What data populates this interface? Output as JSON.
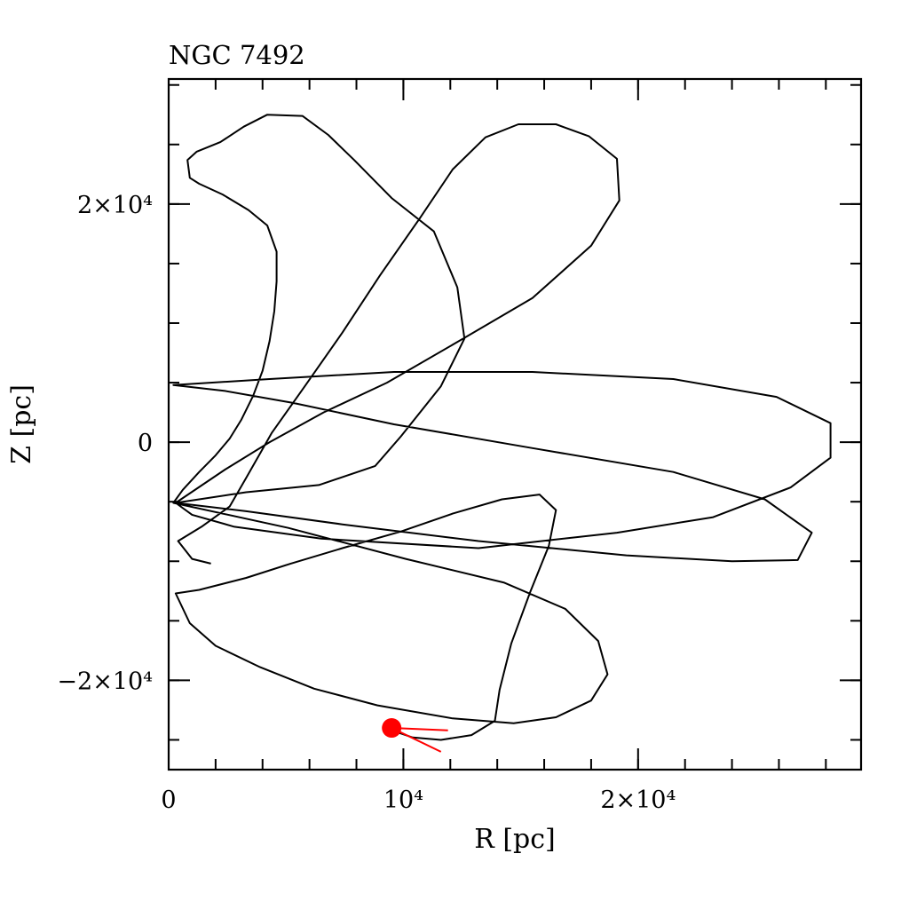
{
  "chart_data": {
    "type": "line",
    "title": "NGC 7492",
    "xlabel": "R [pc]",
    "ylabel": "Z [pc]",
    "xlim": [
      0,
      29500
    ],
    "ylim": [
      -27500,
      30500
    ],
    "grid": false,
    "x_ticks": [
      {
        "value": 0,
        "label": "0"
      },
      {
        "value": 10000,
        "label": "10⁴"
      },
      {
        "value": 20000,
        "label": "2×10⁴"
      }
    ],
    "y_ticks": [
      {
        "value": -20000,
        "label": "−2×10⁴"
      },
      {
        "value": 0,
        "label": "0"
      },
      {
        "value": 20000,
        "label": "2×10⁴"
      }
    ],
    "x_minor_step": 2000,
    "y_minor_step": 5000,
    "series": [
      {
        "color": "#000000",
        "points": [
          [
            1800,
            -10200
          ],
          [
            1000,
            -9800
          ],
          [
            400,
            -8300
          ],
          [
            1400,
            -7100
          ],
          [
            2600,
            -5400
          ],
          [
            3300,
            -3000
          ],
          [
            4400,
            800
          ],
          [
            5800,
            4700
          ],
          [
            7400,
            9200
          ],
          [
            9000,
            14000
          ],
          [
            10700,
            18800
          ],
          [
            12100,
            22900
          ],
          [
            13500,
            25600
          ],
          [
            14900,
            26700
          ],
          [
            16500,
            26700
          ],
          [
            17900,
            25700
          ],
          [
            19100,
            23800
          ],
          [
            19200,
            20300
          ],
          [
            18000,
            16500
          ],
          [
            15500,
            12100
          ],
          [
            12200,
            8300
          ],
          [
            9300,
            5000
          ],
          [
            6600,
            2500
          ],
          [
            4300,
            0
          ],
          [
            2400,
            -2300
          ],
          [
            300,
            -5100
          ],
          [
            3300,
            -5800
          ],
          [
            7400,
            -6900
          ],
          [
            13200,
            -8300
          ],
          [
            19500,
            -9500
          ],
          [
            24000,
            -10000
          ],
          [
            26800,
            -9900
          ],
          [
            27400,
            -7600
          ],
          [
            25400,
            -4800
          ],
          [
            21500,
            -2500
          ],
          [
            15500,
            -500
          ],
          [
            9600,
            1500
          ],
          [
            5300,
            3300
          ],
          [
            2400,
            4300
          ],
          [
            200,
            4800
          ],
          [
            4300,
            5300
          ],
          [
            9600,
            5900
          ],
          [
            15500,
            5900
          ],
          [
            21500,
            5300
          ],
          [
            25900,
            3800
          ],
          [
            28200,
            1600
          ],
          [
            28200,
            -1300
          ],
          [
            26500,
            -3800
          ],
          [
            23200,
            -6300
          ],
          [
            19100,
            -7600
          ],
          [
            13200,
            -8900
          ],
          [
            6500,
            -8100
          ],
          [
            2800,
            -7100
          ],
          [
            1000,
            -6100
          ],
          [
            300,
            -5100
          ],
          [
            3300,
            -4200
          ],
          [
            6400,
            -3600
          ],
          [
            8800,
            -2000
          ],
          [
            9900,
            500
          ],
          [
            11600,
            4700
          ],
          [
            12600,
            8700
          ],
          [
            12300,
            13000
          ],
          [
            11300,
            17700
          ],
          [
            9500,
            20500
          ],
          [
            7900,
            23700
          ],
          [
            6800,
            25800
          ],
          [
            5700,
            27400
          ],
          [
            4200,
            27500
          ],
          [
            3200,
            26500
          ],
          [
            2200,
            25200
          ],
          [
            1200,
            24400
          ],
          [
            800,
            23700
          ],
          [
            900,
            22200
          ],
          [
            1300,
            21700
          ],
          [
            2300,
            20800
          ],
          [
            3400,
            19500
          ],
          [
            4200,
            18200
          ],
          [
            4600,
            16000
          ],
          [
            4600,
            13500
          ],
          [
            4500,
            11000
          ],
          [
            4300,
            8500
          ],
          [
            4000,
            6000
          ],
          [
            3600,
            3900
          ],
          [
            3100,
            1900
          ],
          [
            2600,
            300
          ],
          [
            2000,
            -1100
          ],
          [
            1300,
            -2500
          ],
          [
            600,
            -4000
          ],
          [
            200,
            -5100
          ],
          [
            5100,
            -7200
          ],
          [
            10100,
            -9800
          ],
          [
            14300,
            -11800
          ],
          [
            16900,
            -14000
          ],
          [
            18300,
            -16700
          ],
          [
            18700,
            -19500
          ],
          [
            18000,
            -21700
          ],
          [
            16500,
            -23100
          ],
          [
            14700,
            -23600
          ],
          [
            12100,
            -23200
          ],
          [
            8900,
            -22100
          ],
          [
            6200,
            -20700
          ],
          [
            3900,
            -18900
          ],
          [
            2000,
            -17100
          ],
          [
            900,
            -15200
          ],
          [
            300,
            -12700
          ],
          [
            1300,
            -12400
          ],
          [
            3300,
            -11400
          ],
          [
            5200,
            -10200
          ],
          [
            7400,
            -8900
          ],
          [
            9900,
            -7500
          ],
          [
            12100,
            -6000
          ],
          [
            14200,
            -4800
          ],
          [
            15800,
            -4400
          ],
          [
            16500,
            -5700
          ],
          [
            16200,
            -8700
          ],
          [
            15400,
            -12600
          ],
          [
            14600,
            -16900
          ],
          [
            14100,
            -20800
          ],
          [
            13900,
            -23400
          ],
          [
            12900,
            -24600
          ],
          [
            11600,
            -25000
          ],
          [
            10400,
            -24800
          ],
          [
            9800,
            -24400
          ],
          [
            9500,
            -24000
          ]
        ]
      }
    ],
    "marker": {
      "x": 9500,
      "y": -24000,
      "color": "#ff0000"
    },
    "velocity_vectors": [
      {
        "x2": 11900,
        "y2": -24200
      },
      {
        "x2": 11600,
        "y2": -26000
      }
    ]
  }
}
